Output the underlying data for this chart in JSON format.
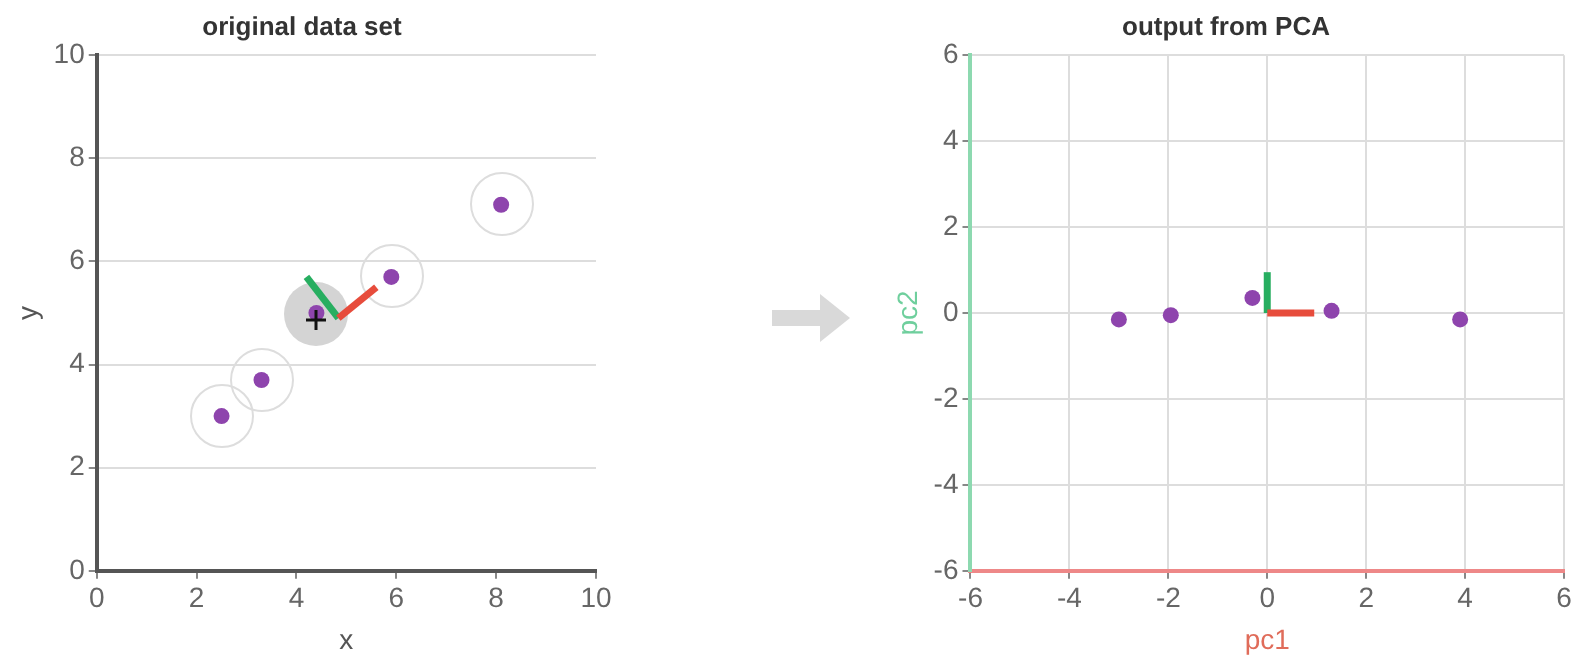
{
  "chart_data": [
    {
      "type": "scatter",
      "title": "original data set",
      "xlabel": "x",
      "ylabel": "y",
      "xlim": [
        0,
        10
      ],
      "ylim": [
        0,
        10
      ],
      "xticks": [
        0,
        2,
        4,
        6,
        8,
        10
      ],
      "yticks": [
        0,
        2,
        4,
        6,
        8,
        10
      ],
      "grid": "y",
      "legend": false,
      "line_style": "solid",
      "series": [
        {
          "type": "scatter",
          "marker": "circle",
          "color": "#8e44ad",
          "x": [
            2.5,
            3.3,
            4.4,
            5.9,
            8.1
          ],
          "values": [
            3.0,
            3.7,
            5.0,
            5.7,
            7.1
          ]
        },
        {
          "type": "line",
          "marker": "none",
          "color": "#e74c3c",
          "x": [
            4.84,
            5.6
          ],
          "values": [
            4.9,
            5.5
          ]
        },
        {
          "type": "line",
          "marker": "none",
          "color": "#27ae60",
          "x": [
            4.84,
            4.2
          ],
          "values": [
            4.9,
            5.7
          ]
        }
      ]
    },
    {
      "type": "scatter",
      "title": "output from PCA",
      "xlabel": "pc1",
      "ylabel": "pc2",
      "xlim": [
        -6,
        6
      ],
      "ylim": [
        -6,
        6
      ],
      "xticks": [
        -6,
        -4,
        -2,
        0,
        2,
        4,
        6
      ],
      "yticks": [
        -6,
        -4,
        -2,
        0,
        2,
        4,
        6
      ],
      "grid": true,
      "legend": false,
      "line_style": "solid",
      "series": [
        {
          "type": "scatter",
          "marker": "circle",
          "color": "#8e44ad",
          "x": [
            -3.0,
            -1.95,
            -0.3,
            1.3,
            3.9
          ],
          "values": [
            -0.15,
            -0.05,
            0.35,
            0.05,
            -0.15
          ]
        },
        {
          "type": "line",
          "marker": "none",
          "color": "#e74c3c",
          "x": [
            0,
            0.95
          ],
          "values": [
            0,
            0
          ]
        },
        {
          "type": "line",
          "marker": "none",
          "color": "#27ae60",
          "x": [
            0,
            0
          ],
          "values": [
            0,
            0.95
          ]
        }
      ]
    }
  ]
}
